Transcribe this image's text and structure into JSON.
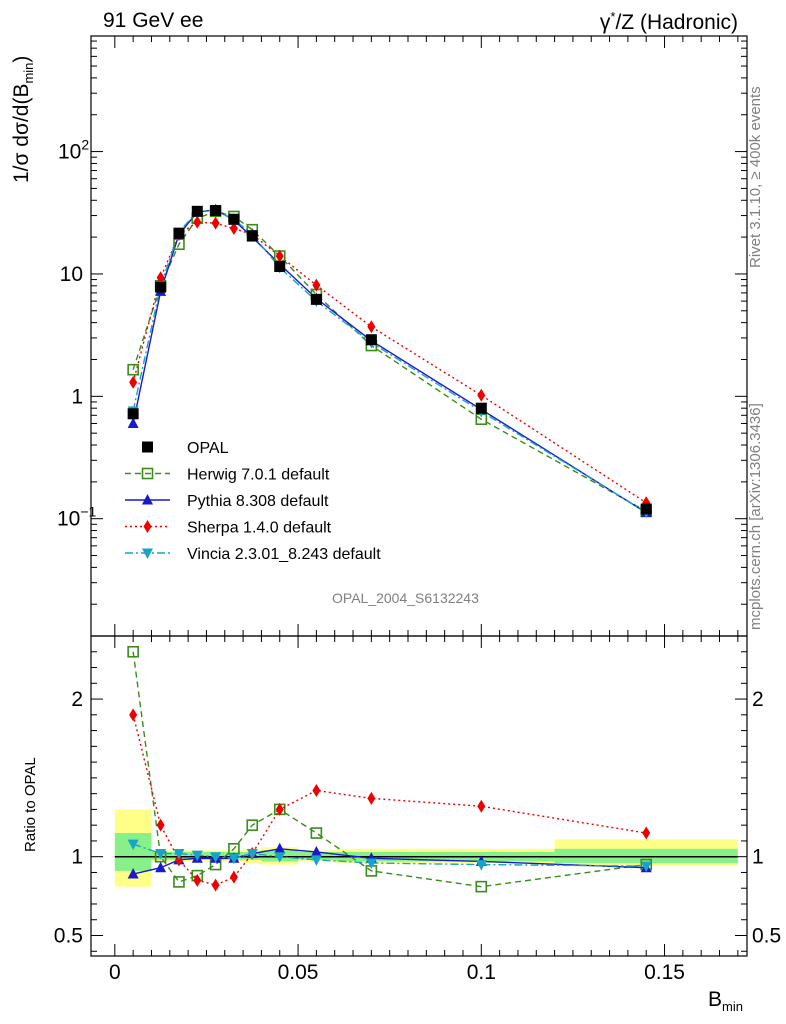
{
  "header": {
    "left_title": "91 GeV ee",
    "right_title_pre": "γ",
    "right_title_sup": "*",
    "right_title_post": "/Z (Hadronic)"
  },
  "side": {
    "rivet_label": "Rivet 3.1.10, ≥ 400k events",
    "mcplots_label": "mcplots.cern.ch [arXiv:1306.3436]"
  },
  "analysis_id": "OPAL_2004_S6132243",
  "main_ylabel": {
    "pre": "1/σ dσ/d(B",
    "sub": "min",
    "post": ")"
  },
  "ratio_ylabel": "Ratio to OPAL",
  "xlabel": {
    "pre": "B",
    "sub": "min"
  },
  "colors": {
    "data": "#000000",
    "herwig": "#3a8c1c",
    "pythia": "#1a1acd",
    "sherpa": "#ee0000",
    "vincia": "#1aa3c8",
    "band_inner": "#88f088",
    "band_outer": "#ffff88"
  },
  "chart_data": [
    {
      "type": "line",
      "title": "",
      "xlabel": "B_min",
      "ylabel": "1/σ dσ/d(B_min)",
      "yscale": "log",
      "xlim": [
        -0.0065,
        0.1725
      ],
      "ylim": [
        0.011,
        880
      ],
      "x_ticks": [
        0,
        0.05,
        0.1,
        0.15
      ],
      "y_tick_labels": [
        "10^-1",
        "1",
        "10",
        "10^2"
      ],
      "y_tick_values": [
        0.1,
        1,
        10,
        100
      ],
      "legend_position": "center-left",
      "x": [
        0.005,
        0.0125,
        0.0175,
        0.0225,
        0.0275,
        0.0325,
        0.0375,
        0.045,
        0.055,
        0.07,
        0.1,
        0.145
      ],
      "series": [
        {
          "name": "OPAL",
          "key": "data",
          "marker": "square",
          "values": [
            0.72,
            7.8,
            21.5,
            32.5,
            33.0,
            28.0,
            20.5,
            11.5,
            6.2,
            2.9,
            0.8,
            0.12
          ]
        },
        {
          "name": "Herwig 7.0.1 default",
          "key": "herwig",
          "marker": "open-square",
          "dash": "dashed",
          "values": [
            1.65,
            8.0,
            17.5,
            28.5,
            32.5,
            29.5,
            23.0,
            14.0,
            6.8,
            2.6,
            0.65,
            0.115
          ]
        },
        {
          "name": "Pythia 8.308 default",
          "key": "pythia",
          "marker": "triangle-up",
          "dash": "solid",
          "values": [
            0.6,
            7.2,
            21.0,
            32.0,
            33.5,
            27.5,
            20.0,
            12.0,
            6.3,
            2.85,
            0.78,
            0.112
          ]
        },
        {
          "name": "Sherpa 1.4.0 default",
          "key": "sherpa",
          "marker": "diamond",
          "dash": "dotted",
          "values": [
            1.3,
            9.3,
            21.0,
            26.5,
            26.0,
            23.5,
            21.0,
            14.0,
            8.1,
            3.7,
            1.02,
            0.135
          ]
        },
        {
          "name": "Vincia 2.3.01_8.243 default",
          "key": "vincia",
          "marker": "triangle-down",
          "dash": "dashdot",
          "values": [
            0.76,
            8.0,
            22.0,
            32.5,
            33.0,
            28.0,
            21.0,
            11.3,
            6.0,
            2.75,
            0.75,
            0.113
          ]
        }
      ]
    },
    {
      "type": "line",
      "title": "",
      "xlabel": "B_min",
      "ylabel": "Ratio to OPAL",
      "ylim": [
        0.37,
        2.4
      ],
      "y_ticks": [
        0.5,
        1,
        2
      ],
      "y_tick_labels": [
        "0.5",
        "1",
        "2"
      ],
      "x": [
        0.005,
        0.0125,
        0.0175,
        0.0225,
        0.0275,
        0.0325,
        0.0375,
        0.045,
        0.055,
        0.07,
        0.1,
        0.145
      ],
      "uncertainty_bands": {
        "edges": [
          0,
          0.01,
          0.015,
          0.02,
          0.025,
          0.03,
          0.035,
          0.04,
          0.05,
          0.06,
          0.08,
          0.12,
          0.17
        ],
        "inner_lo": [
          0.91,
          0.98,
          0.98,
          0.98,
          0.98,
          0.98,
          0.98,
          0.97,
          0.98,
          0.97,
          0.97,
          0.96
        ],
        "inner_hi": [
          1.15,
          1.03,
          1.03,
          1.03,
          1.03,
          1.03,
          1.03,
          1.04,
          1.03,
          1.03,
          1.03,
          1.05
        ],
        "outer_lo": [
          0.81,
          0.97,
          0.97,
          0.97,
          0.97,
          0.97,
          0.96,
          0.95,
          0.97,
          0.96,
          0.96,
          0.94
        ],
        "outer_hi": [
          1.3,
          1.04,
          1.04,
          1.04,
          1.04,
          1.04,
          1.05,
          1.06,
          1.04,
          1.05,
          1.05,
          1.11
        ]
      },
      "series": [
        {
          "name": "Herwig 7.0.1 default",
          "key": "herwig",
          "values": [
            2.3,
            1.0,
            0.84,
            0.88,
            0.95,
            1.05,
            1.2,
            1.3,
            1.15,
            0.91,
            0.81,
            0.95
          ]
        },
        {
          "name": "Pythia 8.308 default",
          "key": "pythia",
          "values": [
            0.89,
            0.93,
            0.98,
            0.99,
            0.99,
            0.99,
            1.02,
            1.05,
            1.03,
            0.99,
            0.97,
            0.93
          ]
        },
        {
          "name": "Sherpa 1.4.0 default",
          "key": "sherpa",
          "values": [
            1.9,
            1.2,
            0.98,
            0.85,
            0.82,
            0.87,
            1.02,
            1.3,
            1.42,
            1.37,
            1.32,
            1.15
          ]
        },
        {
          "name": "Vincia 2.3.01_8.243 default",
          "key": "vincia",
          "values": [
            1.08,
            1.02,
            1.02,
            1.01,
            1.0,
            0.99,
            1.02,
            1.0,
            0.98,
            0.96,
            0.95,
            0.94
          ]
        }
      ]
    }
  ]
}
